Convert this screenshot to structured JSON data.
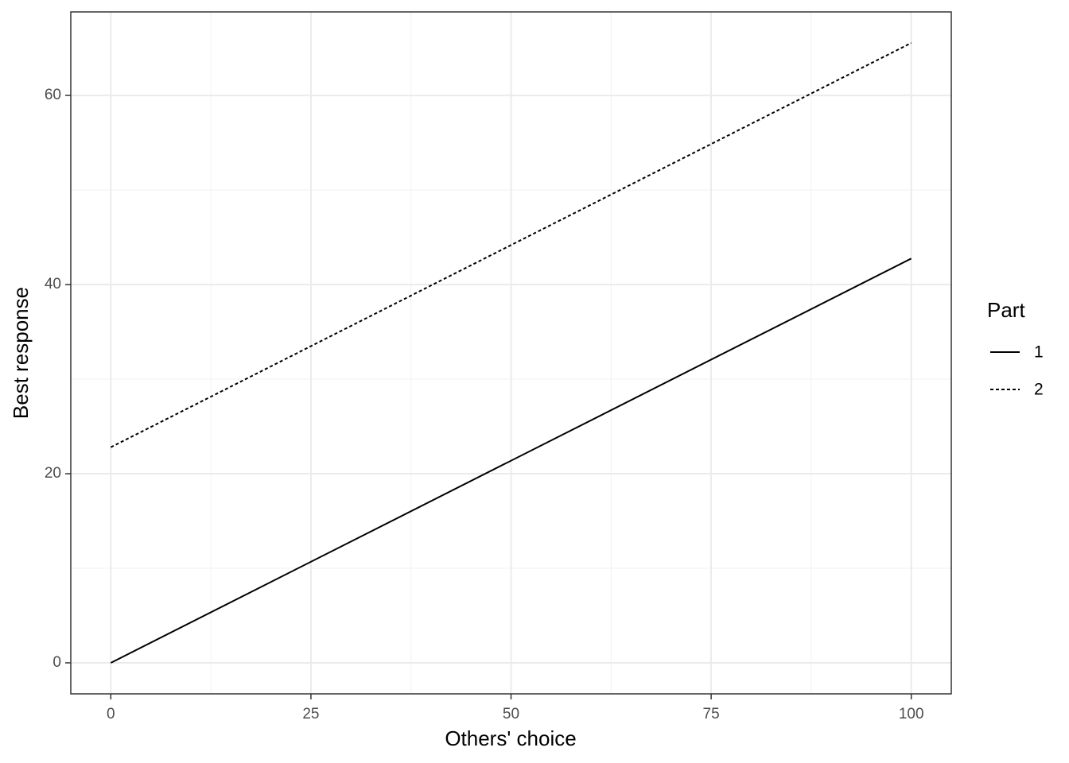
{
  "chart_data": {
    "type": "line",
    "x_label": "Others' choice",
    "y_label": "Best response",
    "x": [
      0,
      100
    ],
    "series": [
      {
        "name": "1",
        "color": "#000000",
        "dash": "solid",
        "values": [
          0,
          42.75
        ]
      },
      {
        "name": "2",
        "color": "#000000",
        "dash": "dotted",
        "values": [
          22.8,
          65.55
        ]
      }
    ],
    "xlim": [
      -5,
      105
    ],
    "xticks": [
      0,
      25,
      50,
      75,
      100
    ],
    "ylim": [
      -3.28,
      68.83
    ],
    "yticks": [
      0,
      20,
      40,
      60
    ],
    "grid": true,
    "legend_title": "Part",
    "legend_position": "right"
  }
}
